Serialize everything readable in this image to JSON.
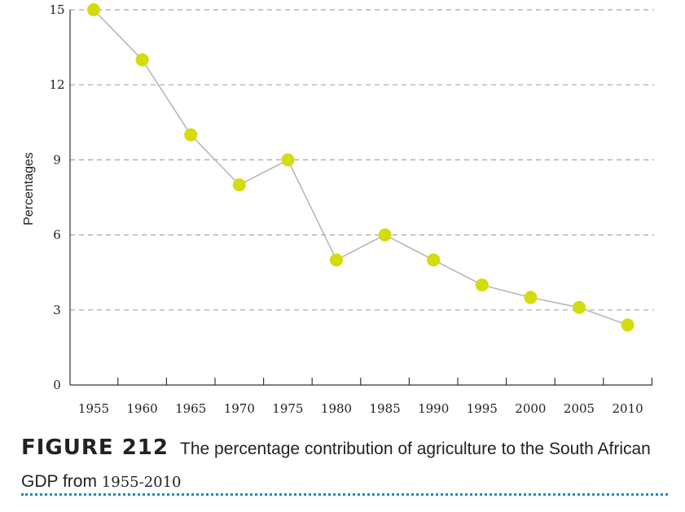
{
  "chart_data": {
    "type": "line",
    "title": "",
    "xlabel": "",
    "ylabel": "Percentages",
    "x": [
      "1955",
      "1960",
      "1965",
      "1970",
      "1975",
      "1980",
      "1985",
      "1990",
      "1995",
      "2000",
      "2005",
      "2010"
    ],
    "values": [
      15,
      13,
      10,
      8,
      9,
      5,
      6,
      5,
      4,
      3.5,
      3.1,
      2.4
    ],
    "yticks": [
      0,
      3,
      6,
      9,
      12,
      15
    ],
    "ylim": [
      0,
      15
    ],
    "grid": "horizontal dashed",
    "colors": {
      "marker": "#d3dc0c",
      "line": "#b3b3b3",
      "grid": "#a6a6a6",
      "axis": "#333333"
    }
  },
  "caption": {
    "figure_label": "FIGURE 212",
    "text_part1": "The percentage contribution of agriculture to the South African GDP from ",
    "years": "1955-2010",
    "rule_color": "#1b8fb8"
  }
}
